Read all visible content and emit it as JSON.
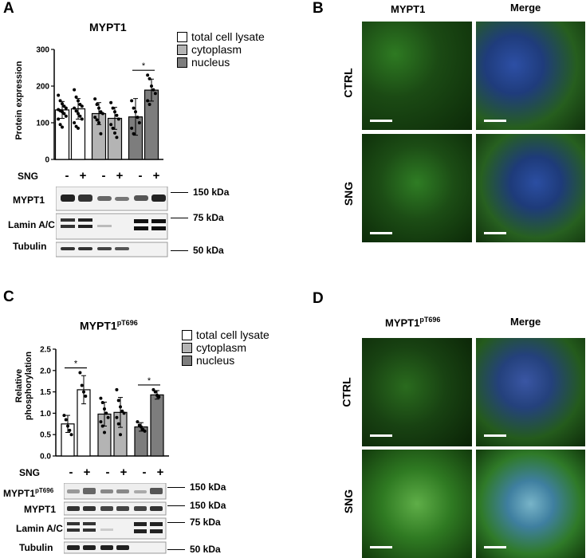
{
  "panel_a": {
    "letter": "A",
    "title": "MYPT1",
    "ylabel": "Protein expression",
    "legend": [
      {
        "label": "total cell lysate",
        "color": "#ffffff"
      },
      {
        "label": "cytoplasm",
        "color": "#b4b4b4"
      },
      {
        "label": "nucleus",
        "color": "#7d7d7d"
      }
    ],
    "sig": "*",
    "sng_label": "SNG",
    "signs": [
      "-",
      "+",
      "-",
      "+",
      "-",
      "+"
    ],
    "blots": [
      {
        "label": "MYPT1"
      },
      {
        "label": "Lamin A/C"
      },
      {
        "label": "Tubulin"
      }
    ],
    "markers": [
      "150 kDa",
      "75 kDa",
      "50 kDa"
    ]
  },
  "panel_b": {
    "letter": "B",
    "col1": "MYPT1",
    "col2": "Merge",
    "row1": "CTRL",
    "row2": "SNG"
  },
  "panel_c": {
    "letter": "C",
    "title_main": "MYPT1",
    "title_sup": "pT696",
    "ylabel_line1": "Relative",
    "ylabel_line2": "phosphorylation",
    "legend": [
      {
        "label": "total cell lysate",
        "color": "#ffffff"
      },
      {
        "label": "cytoplasm",
        "color": "#b4b4b4"
      },
      {
        "label": "nucleus",
        "color": "#7d7d7d"
      }
    ],
    "sig": "*",
    "sng_label": "SNG",
    "signs": [
      "-",
      "+",
      "-",
      "+",
      "-",
      "+"
    ],
    "blots": [
      {
        "label_main": "MYPT1",
        "label_sup": "pT696"
      },
      {
        "label_main": "MYPT1",
        "label_sup": ""
      },
      {
        "label_main": "Lamin A/C",
        "label_sup": ""
      },
      {
        "label_main": "Tubulin",
        "label_sup": ""
      }
    ],
    "markers": [
      "150 kDa",
      "150 kDa",
      "75 kDa",
      "50 kDa"
    ]
  },
  "panel_d": {
    "letter": "D",
    "col1_main": "MYPT1",
    "col1_sup": "pT696",
    "col2": "Merge",
    "row1": "CTRL",
    "row2": "SNG"
  },
  "chart_data": [
    {
      "type": "bar",
      "title": "MYPT1",
      "ylabel": "Protein expression",
      "ylim": [
        0,
        300
      ],
      "yticks": [
        "0",
        "100",
        "200",
        "300"
      ],
      "categories": [
        "total cell lysate -",
        "total cell lysate +",
        "cytoplasm -",
        "cytoplasm +",
        "nucleus -",
        "nucleus +"
      ],
      "values": [
        135,
        138,
        125,
        112,
        116,
        189
      ],
      "errors": [
        23,
        28,
        30,
        30,
        50,
        30
      ],
      "colors": [
        "#ffffff",
        "#ffffff",
        "#b4b4b4",
        "#b4b4b4",
        "#7d7d7d",
        "#7d7d7d"
      ],
      "points": [
        [
          175,
          160,
          152,
          145,
          140,
          136,
          133,
          130,
          125,
          118,
          110,
          95,
          88
        ],
        [
          190,
          170,
          160,
          150,
          145,
          140,
          132,
          125,
          118,
          110,
          100,
          90,
          85
        ],
        [
          165,
          150,
          140,
          130,
          125,
          115,
          108,
          100,
          70
        ],
        [
          155,
          140,
          130,
          120,
          110,
          95,
          85,
          72,
          60
        ],
        [
          160,
          140,
          130,
          115,
          100,
          85,
          70
        ],
        [
          230,
          220,
          200,
          190,
          180,
          160,
          150
        ]
      ],
      "significance": [
        {
          "from": 4,
          "to": 5,
          "label": "*"
        }
      ]
    },
    {
      "type": "bar",
      "title": "MYPT1pT696",
      "ylabel": "Relative phosphorylation",
      "ylim": [
        0,
        2.5
      ],
      "yticks": [
        "0.0",
        "0.5",
        "1.0",
        "1.5",
        "2.0",
        "2.5"
      ],
      "categories": [
        "total cell lysate -",
        "total cell lysate +",
        "cytoplasm -",
        "cytoplasm +",
        "nucleus -",
        "nucleus +"
      ],
      "values": [
        0.75,
        1.55,
        0.98,
        1.02,
        0.68,
        1.43
      ],
      "errors": [
        0.2,
        0.33,
        0.28,
        0.35,
        0.1,
        0.1
      ],
      "colors": [
        "#ffffff",
        "#ffffff",
        "#b4b4b4",
        "#b4b4b4",
        "#7d7d7d",
        "#7d7d7d"
      ],
      "points": [
        [
          0.95,
          0.85,
          0.7,
          0.6,
          0.5
        ],
        [
          1.95,
          1.65,
          1.5,
          1.4
        ],
        [
          1.35,
          1.25,
          1.1,
          1.0,
          0.9,
          0.8,
          0.7,
          0.55
        ],
        [
          1.55,
          1.3,
          1.15,
          1.05,
          1.0,
          0.9,
          0.75,
          0.5
        ],
        [
          0.8,
          0.72,
          0.68,
          0.62,
          0.58
        ],
        [
          1.55,
          1.5,
          1.42,
          1.38
        ]
      ],
      "significance": [
        {
          "from": 0,
          "to": 1,
          "label": "*"
        },
        {
          "from": 4,
          "to": 5,
          "label": "*"
        }
      ]
    }
  ]
}
